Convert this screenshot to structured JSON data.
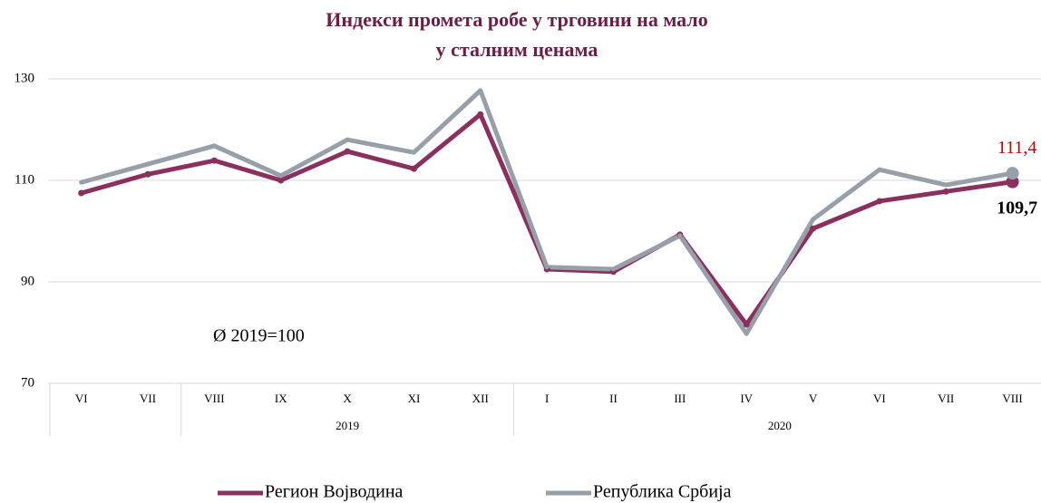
{
  "chart_data": {
    "type": "line",
    "title": "Индекси промета робе у трговини на мало",
    "subtitle": "у сталним ценама",
    "annotation": "Ø 2019=100",
    "categories": [
      "VI",
      "VII",
      "VIII",
      "IX",
      "X",
      "XI",
      "XII",
      "I",
      "II",
      "III",
      "IV",
      "V",
      "VI",
      "VII",
      "VIII"
    ],
    "groups": [
      {
        "label": null,
        "count": 2
      },
      {
        "label": "2019",
        "count": 5
      },
      {
        "label": "2020",
        "count": 8
      }
    ],
    "series": [
      {
        "name": "Регион Војводина",
        "color": "#8b2f5e",
        "values": [
          107.5,
          111.2,
          113.9,
          110,
          115.7,
          112.3,
          123,
          92.5,
          92,
          99.3,
          81.6,
          100.5,
          105.9,
          107.8,
          109.7
        ],
        "value_labels": [
          null,
          null,
          null,
          null,
          null,
          null,
          null,
          null,
          null,
          null,
          null,
          null,
          null,
          null,
          "109,7"
        ],
        "label_color": "#000000"
      },
      {
        "name": "Република Србија",
        "color": "#979fa9",
        "values": [
          109.6,
          113.2,
          116.8,
          110.9,
          118,
          115.5,
          127.7,
          92.9,
          92.5,
          99.1,
          79.8,
          102.3,
          112.1,
          109.1,
          111.4
        ],
        "value_labels": [
          null,
          null,
          null,
          null,
          null,
          null,
          null,
          null,
          null,
          null,
          null,
          null,
          null,
          null,
          "111,4"
        ],
        "label_color": "#c00000"
      }
    ],
    "ylim": [
      70,
      130
    ],
    "yticks": [
      70,
      90,
      110,
      130
    ],
    "grid": true,
    "legend": "bottom"
  }
}
